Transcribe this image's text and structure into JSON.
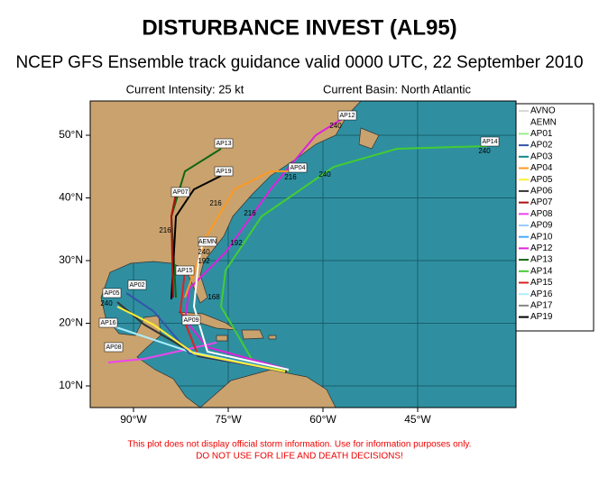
{
  "header": {
    "title": "DISTURBANCE INVEST (AL95)",
    "subtitle": "NCEP GFS Ensemble track guidance valid 0000 UTC, 22 September 2010",
    "intensity": "Current Intensity: 25 kt",
    "basin": "Current Basin: North Atlantic"
  },
  "map": {
    "lon_ticks": [
      {
        "value": -90,
        "label": "90°W"
      },
      {
        "value": -75,
        "label": "75°W"
      },
      {
        "value": -60,
        "label": "60°W"
      },
      {
        "value": -45,
        "label": "45°W"
      }
    ],
    "lat_ticks": [
      {
        "value": 50,
        "label": "50°N"
      },
      {
        "value": 40,
        "label": "40°N"
      },
      {
        "value": 30,
        "label": "30°N"
      },
      {
        "value": 20,
        "label": "20°N"
      },
      {
        "value": 10,
        "label": "10°N"
      }
    ],
    "track_labels": [
      "AP12",
      "AP14",
      "AP04",
      "AP13",
      "AP19",
      "AP07",
      "AEMN",
      "AP15",
      "AP05",
      "AP02",
      "AP16",
      "AP08",
      "AP09"
    ],
    "hour_labels": [
      "240",
      "240",
      "216",
      "240",
      "192",
      "216",
      "216",
      "240",
      "192",
      "168",
      "216",
      "240"
    ]
  },
  "legend": [
    {
      "name": "AVNO",
      "color": "#d8d8d8"
    },
    {
      "name": "AEMN",
      "color": "#ffffff"
    },
    {
      "name": "AP01",
      "color": "#99ee88"
    },
    {
      "name": "AP02",
      "color": "#3355aa"
    },
    {
      "name": "AP03",
      "color": "#118888"
    },
    {
      "name": "AP04",
      "color": "#ff9922"
    },
    {
      "name": "AP05",
      "color": "#ffee33"
    },
    {
      "name": "AP06",
      "color": "#333333"
    },
    {
      "name": "AP07",
      "color": "#aa1111"
    },
    {
      "name": "AP08",
      "color": "#ee44ee"
    },
    {
      "name": "AP09",
      "color": "#99ccff"
    },
    {
      "name": "AP10",
      "color": "#44aaff"
    },
    {
      "name": "AP12",
      "color": "#dd22dd"
    },
    {
      "name": "AP13",
      "color": "#116611"
    },
    {
      "name": "AP14",
      "color": "#44cc33"
    },
    {
      "name": "AP15",
      "color": "#dd2222"
    },
    {
      "name": "AP16",
      "color": "#aaeeff"
    },
    {
      "name": "AP17",
      "color": "#888888"
    },
    {
      "name": "AP19",
      "color": "#000000"
    }
  ],
  "footer": [
    "This plot does not display official storm information. Use for information purposes only.",
    "DO NOT USE FOR LIFE AND DEATH DECISIONS!"
  ]
}
